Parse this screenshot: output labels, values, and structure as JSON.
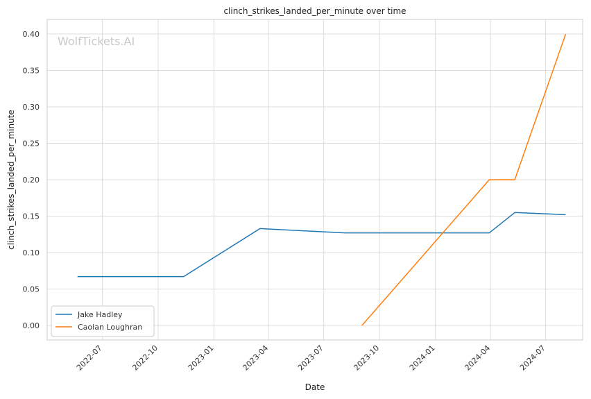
{
  "watermark": "WolfTickets.AI",
  "chart_data": {
    "type": "line",
    "title": "clinch_strikes_landed_per_minute over time",
    "xlabel": "Date",
    "ylabel": "clinch_strikes_landed_per_minute",
    "x_type": "date",
    "xlim": [
      "2022-04-01",
      "2024-08-31"
    ],
    "ylim": [
      -0.02,
      0.42
    ],
    "x_ticks": [
      "2022-07-01",
      "2022-10-01",
      "2023-01-01",
      "2023-04-01",
      "2023-07-01",
      "2023-10-01",
      "2024-01-01",
      "2024-04-01",
      "2024-07-01"
    ],
    "x_tick_labels": [
      "2022-07",
      "2022-10",
      "2023-01",
      "2023-04",
      "2023-07",
      "2023-10",
      "2024-01",
      "2024-04",
      "2024-07"
    ],
    "y_ticks": [
      0.0,
      0.05,
      0.1,
      0.15,
      0.2,
      0.25,
      0.3,
      0.35,
      0.4
    ],
    "y_tick_labels": [
      "0.00",
      "0.05",
      "0.10",
      "0.15",
      "0.20",
      "0.25",
      "0.30",
      "0.35",
      "0.40"
    ],
    "grid": true,
    "legend_position": "lower-left",
    "series": [
      {
        "name": "Jake Hadley",
        "color": "#1f77b4",
        "points": [
          {
            "x": "2022-05-21",
            "y": 0.067
          },
          {
            "x": "2022-11-12",
            "y": 0.067
          },
          {
            "x": "2023-03-18",
            "y": 0.133
          },
          {
            "x": "2023-08-05",
            "y": 0.127
          },
          {
            "x": "2024-03-30",
            "y": 0.127
          },
          {
            "x": "2024-05-11",
            "y": 0.155
          },
          {
            "x": "2024-08-03",
            "y": 0.152
          }
        ]
      },
      {
        "name": "Caolan Loughran",
        "color": "#ff7f0e",
        "points": [
          {
            "x": "2023-09-02",
            "y": 0.0
          },
          {
            "x": "2024-03-30",
            "y": 0.2
          },
          {
            "x": "2024-05-11",
            "y": 0.2
          },
          {
            "x": "2024-08-03",
            "y": 0.4
          }
        ]
      }
    ]
  }
}
